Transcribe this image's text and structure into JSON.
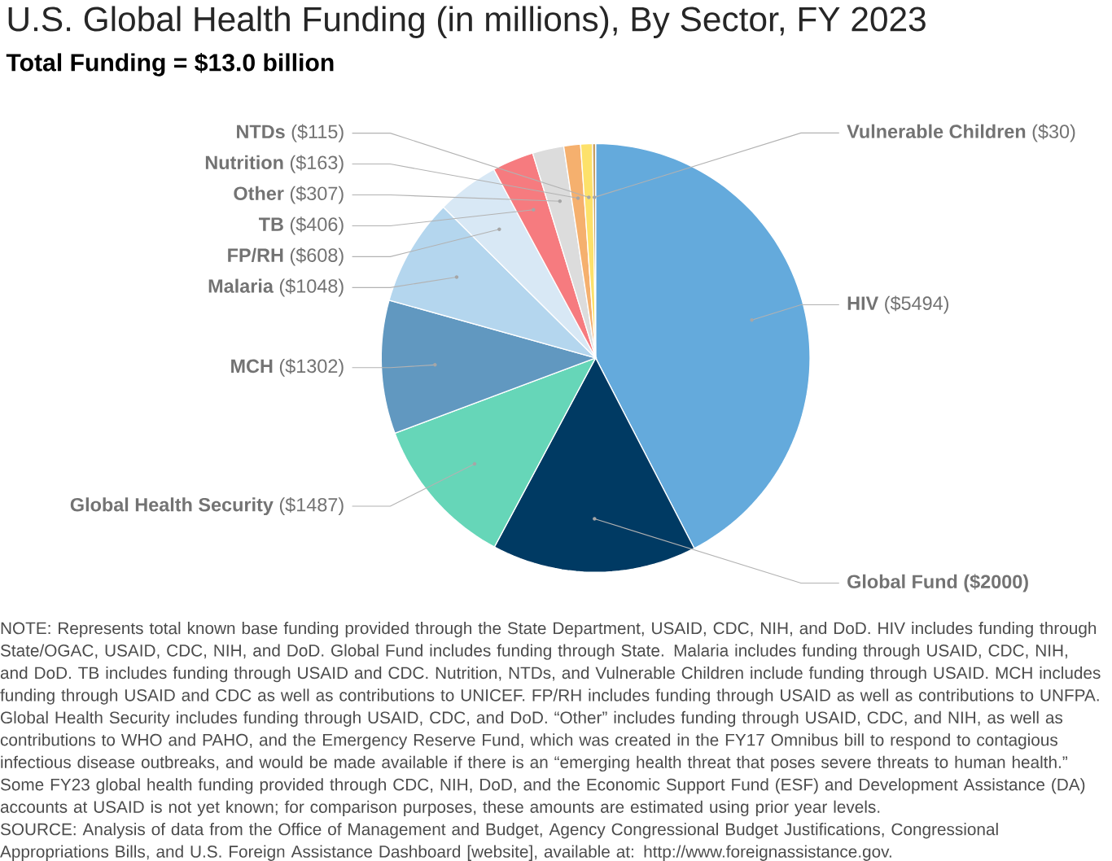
{
  "chart_data": {
    "type": "pie",
    "title": "U.S. Global Health Funding (in millions), By Sector, FY 2023",
    "subtitle": "Total Funding = $13.0 billion",
    "categories": [
      "HIV",
      "Global Fund",
      "Global Health Security",
      "MCH",
      "Malaria",
      "FP/RH",
      "TB",
      "Other",
      "Nutrition",
      "NTDs",
      "Vulnerable Children"
    ],
    "values": [
      5494,
      2000,
      1487,
      1302,
      1048,
      608,
      406,
      307,
      163,
      115,
      30
    ],
    "colors": [
      "#64aadc",
      "#003a63",
      "#66d6b8",
      "#6198c0",
      "#b4d6ee",
      "#d8e8f5",
      "#f67b7f",
      "#dcdcdc",
      "#f5b06e",
      "#fde16a",
      "#c8a062"
    ],
    "value_labels": [
      "($5494)",
      "**($2000)**",
      "($1487)",
      "($1302)",
      "($1048)",
      "($608)",
      "($406)",
      "($307)",
      "($163)",
      "($115)",
      "($30)"
    ],
    "annotations": [
      "NOTE: Represents total known base funding provided through the State Department, USAID, CDC, NIH, and DoD. HIV includes funding through State/OGAC, USAID, CDC, NIH, and DoD. Global Fund includes funding through State. Malaria includes funding through USAID, CDC, NIH, and DoD. TB includes funding through USAID and CDC. Nutrition, NTDs, and Vulnerable Children include funding through USAID. MCH includes funding through USAID and CDC as well as contributions to UNICEF. FP/RH includes funding through USAID as well as contributions to UNFPA. Global Health Security includes funding through USAID, CDC, and DoD. “Other” includes funding through USAID, CDC, and NIH, as well as contributions to WHO and PAHO, and the Emergency Reserve Fund, which was created in the FY17 Omnibus bill to respond to contagious infectious disease outbreaks, and would be made available if there is an “emerging health threat that poses severe threats to human health.” Some FY23 global health funding provided through CDC, NIH, DoD, and the Economic Support Fund (ESF) and Development Assistance (DA) accounts at USAID is not yet known; for comparison purposes, these amounts are estimated using prior year levels.",
      "SOURCE: Analysis of data from the Office of Management and Budget, Agency Congressional Budget Justifications, Congressional Appropriations Bills, and U.S. Foreign Assistance Dashboard [website], available at: http://www.foreignassistance.gov."
    ]
  }
}
